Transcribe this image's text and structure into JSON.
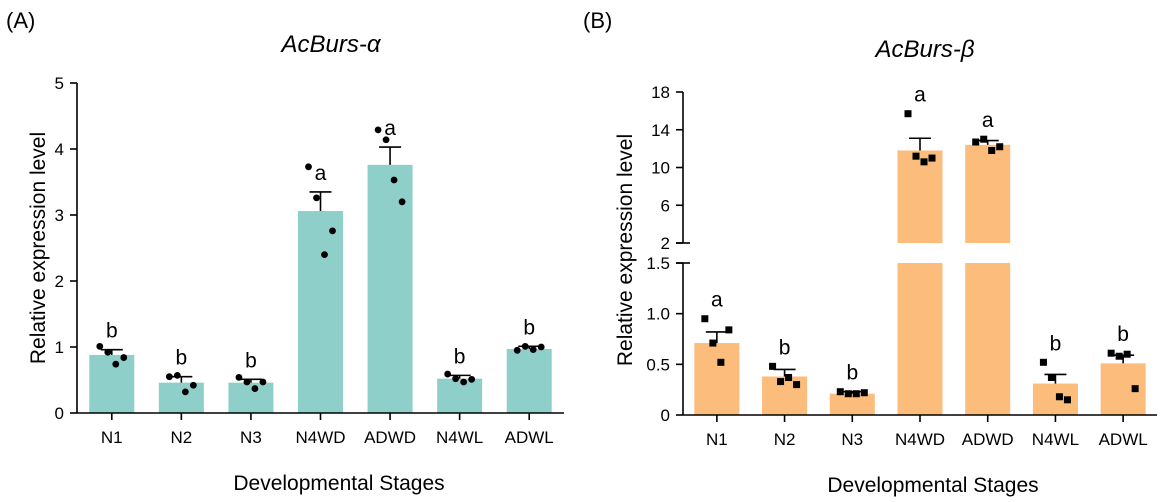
{
  "chart_data": [
    {
      "type": "bar",
      "panel_label": "(A)",
      "title": "AcBurs-α",
      "xlabel": "Developmental Stages",
      "ylabel": "Relative expression level",
      "categories": [
        "N1",
        "N2",
        "N3",
        "N4WD",
        "ADWD",
        "N4WL",
        "ADWL"
      ],
      "ylim": [
        0,
        5
      ],
      "yticks": [
        "0",
        "1",
        "2",
        "3",
        "4",
        "5"
      ],
      "bar_color": "#8fcfca",
      "point_marker": "circle",
      "values": [
        0.88,
        0.46,
        0.46,
        3.06,
        3.76,
        0.52,
        0.97
      ],
      "sem": [
        0.08,
        0.09,
        0.05,
        0.29,
        0.27,
        0.05,
        0.04
      ],
      "points": [
        [
          1.01,
          0.92,
          0.74,
          0.84
        ],
        [
          0.55,
          0.57,
          0.32,
          0.42
        ],
        [
          0.54,
          0.47,
          0.37,
          0.47
        ],
        [
          3.73,
          3.26,
          2.4,
          2.76
        ],
        [
          4.29,
          4.14,
          3.53,
          3.2
        ],
        [
          0.59,
          0.52,
          0.47,
          0.51
        ],
        [
          0.95,
          1.01,
          0.96,
          1.0
        ]
      ],
      "significance": [
        "b",
        "b",
        "b",
        "a",
        "a",
        "b",
        "b"
      ]
    },
    {
      "type": "bar",
      "panel_label": "(B)",
      "title": "AcBurs-β",
      "xlabel": "Developmental Stages",
      "ylabel": "Relative expression level",
      "categories": [
        "N1",
        "N2",
        "N3",
        "N4WD",
        "ADWD",
        "N4WL",
        "ADWL"
      ],
      "axis_break": true,
      "lower_ylim": [
        0,
        1.5
      ],
      "lower_yticks": [
        "0",
        "0.5",
        "1.0",
        "1.5"
      ],
      "upper_ylim": [
        2,
        18
      ],
      "upper_yticks": [
        "2",
        "6",
        "10",
        "14",
        "18"
      ],
      "bar_color": "#fcbc7c",
      "point_marker": "square",
      "values": [
        0.71,
        0.38,
        0.21,
        11.8,
        12.4,
        0.31,
        0.51
      ],
      "sem": [
        0.11,
        0.07,
        0.02,
        1.3,
        0.45,
        0.09,
        0.08
      ],
      "points": [
        [
          0.95,
          0.71,
          0.52,
          0.84
        ],
        [
          0.48,
          0.33,
          0.37,
          0.3
        ],
        [
          0.23,
          0.21,
          0.21,
          0.22
        ],
        [
          15.7,
          11.2,
          10.6,
          11.0
        ],
        [
          12.7,
          13.0,
          11.8,
          12.2
        ],
        [
          0.52,
          0.37,
          0.18,
          0.15
        ],
        [
          0.61,
          0.58,
          0.6,
          0.26
        ]
      ],
      "significance": [
        "a",
        "b",
        "b",
        "a",
        "a",
        "b",
        "b"
      ]
    }
  ]
}
